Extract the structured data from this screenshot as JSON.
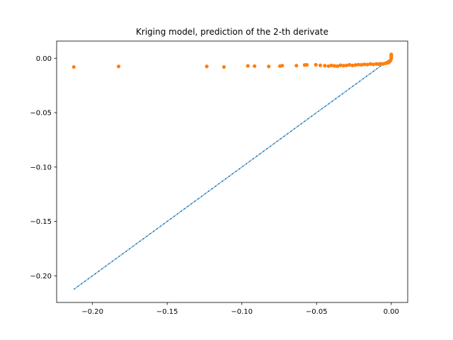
{
  "chart_data": {
    "type": "scatter",
    "title": "Kriging model, prediction of the 2-th derivate",
    "xlabel": "",
    "ylabel": "",
    "xlim": [
      -0.224,
      0.011
    ],
    "ylim": [
      -0.2245,
      0.0158
    ],
    "grid": false,
    "xticks": [
      -0.2,
      -0.15,
      -0.1,
      -0.05,
      0.0
    ],
    "xtick_labels": [
      "−0.20",
      "−0.15",
      "−0.10",
      "−0.05",
      "0.00"
    ],
    "yticks": [
      0.0,
      -0.05,
      -0.1,
      -0.15,
      -0.2
    ],
    "ytick_labels": [
      "0.00",
      "−0.05",
      "−0.10",
      "−0.15",
      "−0.20"
    ],
    "colors": {
      "reference": "#1f77b4",
      "prediction": "#ff7f0e"
    },
    "series": [
      {
        "marker": "line",
        "x": [
          -0.2125,
          0.0
        ],
        "y": [
          -0.2125,
          0.0
        ]
      },
      {
        "marker": "dot",
        "x": [
          -0.2125,
          -0.1825,
          -0.1235,
          -0.112,
          -0.096,
          -0.0915,
          -0.082,
          -0.0745,
          -0.073,
          -0.0635,
          -0.058,
          -0.0565,
          -0.0505,
          -0.0475,
          -0.0445,
          -0.042,
          -0.04,
          -0.038,
          -0.036,
          -0.034,
          -0.032,
          -0.03,
          -0.028,
          -0.026,
          -0.024,
          -0.022,
          -0.02,
          -0.018,
          -0.016,
          -0.014,
          -0.012,
          -0.01,
          -0.0085,
          -0.007,
          -0.0055,
          -0.004,
          -0.003,
          -0.002,
          -0.0012,
          -0.0006,
          -0.0002,
          0.0,
          0.0,
          0.0,
          0.0
        ],
        "y": [
          -0.008,
          -0.0075,
          -0.0075,
          -0.008,
          -0.007,
          -0.0072,
          -0.0075,
          -0.0072,
          -0.0068,
          -0.0068,
          -0.0062,
          -0.006,
          -0.006,
          -0.0065,
          -0.0068,
          -0.0072,
          -0.0066,
          -0.007,
          -0.0072,
          -0.0064,
          -0.0068,
          -0.0066,
          -0.006,
          -0.0066,
          -0.0062,
          -0.0058,
          -0.006,
          -0.0056,
          -0.0058,
          -0.0052,
          -0.0056,
          -0.0052,
          -0.0054,
          -0.005,
          -0.0052,
          -0.0046,
          -0.0044,
          -0.004,
          -0.0032,
          -0.0022,
          -0.001,
          0.0005,
          0.0015,
          0.0025,
          0.0035
        ]
      }
    ]
  }
}
